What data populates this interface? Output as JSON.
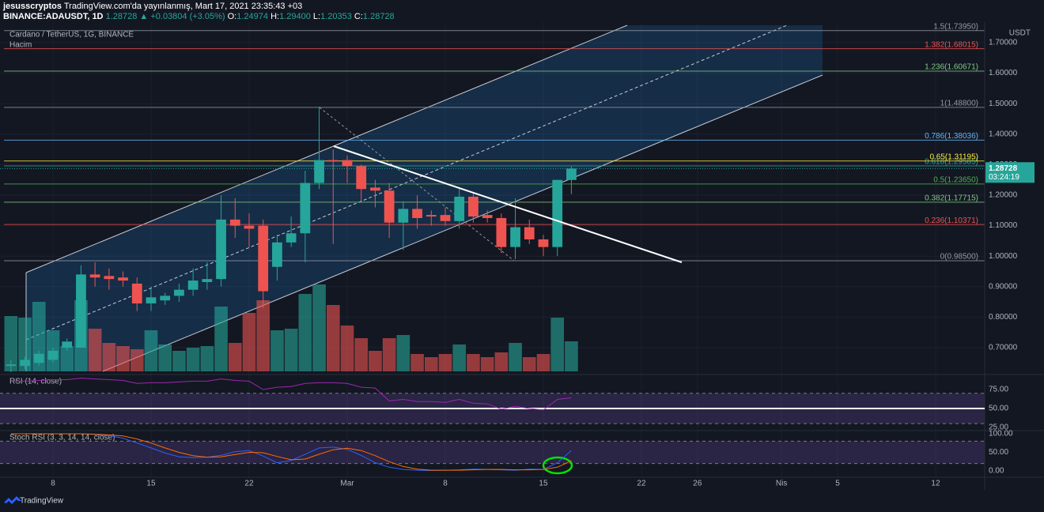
{
  "header": {
    "publisher": "jesusscryptos",
    "published": "TradingView.com'da yayınlanmış, Mart 17, 2021 23:35:43 +03",
    "symbol": "BINANCE:ADAUSDT, 1D",
    "last": "1.28728",
    "change": "▲ +0.03804 (+3.05%)",
    "ohlc": [
      {
        "label": "O:",
        "value": "1.24974"
      },
      {
        "label": "H:",
        "value": "1.29400"
      },
      {
        "label": "L:",
        "value": "1.20353"
      },
      {
        "label": "C:",
        "value": "1.28728"
      }
    ],
    "footer": "TradingView"
  },
  "chart_data": [
    {
      "type": "candlestick",
      "title": "Cardano / TetherUS, 1G, BINANCE",
      "x": [
        5,
        6,
        7,
        8,
        9,
        10,
        11,
        12,
        13,
        14,
        15,
        16,
        17,
        18,
        19,
        20,
        21,
        22,
        23,
        24,
        25,
        26,
        27,
        28,
        29,
        30,
        31,
        32,
        33,
        34,
        35,
        36,
        37,
        38,
        39,
        40,
        41,
        42,
        43,
        44,
        45
      ],
      "open": [
        0.64,
        0.64,
        0.65,
        0.66,
        0.7,
        0.7,
        0.94,
        0.935,
        0.93,
        0.91,
        0.845,
        0.855,
        0.87,
        0.89,
        0.915,
        0.925,
        1.12,
        1.1,
        1.1,
        0.965,
        1.045,
        1.075,
        1.24,
        1.315,
        1.315,
        1.295,
        1.225,
        1.215,
        1.11,
        1.155,
        1.135,
        1.135,
        1.115,
        1.195,
        1.135,
        1.125,
        1.03,
        1.095,
        1.055,
        1.03,
        1.24974
      ],
      "high": [
        0.66,
        0.67,
        0.69,
        0.7,
        0.73,
        0.97,
        0.98,
        0.96,
        0.95,
        0.93,
        0.9,
        0.88,
        0.91,
        0.96,
        0.98,
        1.2,
        1.19,
        1.14,
        1.12,
        1.07,
        1.13,
        1.28,
        1.49,
        1.35,
        1.33,
        1.3,
        1.25,
        1.24,
        1.18,
        1.2,
        1.15,
        1.16,
        1.22,
        1.21,
        1.15,
        1.14,
        1.19,
        1.12,
        1.07,
        1.25,
        1.294
      ],
      "low": [
        0.62,
        0.63,
        0.64,
        0.65,
        0.69,
        0.7,
        0.9,
        0.89,
        0.9,
        0.82,
        0.82,
        0.84,
        0.85,
        0.87,
        0.89,
        0.9,
        1.06,
        1.03,
        0.83,
        0.92,
        1.03,
        0.98,
        1.22,
        1.04,
        1.24,
        1.18,
        1.16,
        1.06,
        1.02,
        1.09,
        1.1,
        1.1,
        1.09,
        1.11,
        1.11,
        1.01,
        0.99,
        1.04,
        1.0,
        1.0,
        1.20353
      ],
      "close": [
        0.645,
        0.66,
        0.68,
        0.69,
        0.72,
        0.94,
        0.93,
        0.925,
        0.92,
        0.845,
        0.865,
        0.87,
        0.89,
        0.92,
        0.925,
        1.12,
        1.1,
        1.09,
        0.885,
        1.045,
        1.075,
        1.24,
        1.315,
        1.31,
        1.295,
        1.22,
        1.215,
        1.11,
        1.155,
        1.125,
        1.13,
        1.115,
        1.195,
        1.13,
        1.125,
        1.03,
        1.095,
        1.055,
        1.03,
        1.25,
        1.28728
      ],
      "up_color": "#26a69a",
      "down_color": "#ef5350",
      "xlim": [
        4.218,
        74.5
      ],
      "xticks": [
        8,
        15,
        22,
        {
          "value": 29,
          "label": "Mar"
        },
        {
          "value": 36,
          "label": "8"
        },
        {
          "value": 43,
          "label": "15"
        },
        {
          "value": 50,
          "label": "22"
        },
        {
          "value": 54,
          "label": "26"
        },
        {
          "value": 60,
          "label": "Nis"
        },
        {
          "value": 64,
          "label": "5"
        },
        {
          "value": 71,
          "label": "12"
        }
      ],
      "ylim": [
        0.6223,
        1.757
      ],
      "yticks": [
        {
          "value": 0.7,
          "label": "0.70000"
        },
        {
          "value": 0.8,
          "label": "0.80000"
        },
        {
          "value": 0.9,
          "label": "0.90000"
        },
        {
          "value": 1.0,
          "label": "1.00000"
        },
        {
          "value": 1.1,
          "label": "1.10000"
        },
        {
          "value": 1.2,
          "label": "1.20000"
        },
        {
          "value": 1.3,
          "label": "1.30000"
        },
        {
          "value": 1.4,
          "label": "1.40000"
        },
        {
          "value": 1.5,
          "label": "1.50000"
        },
        {
          "value": 1.6,
          "label": "1.60000"
        },
        {
          "value": 1.7,
          "label": "1.70000"
        }
      ],
      "grid": true,
      "y_unit": "USDT",
      "last_price": {
        "value": 1.28728,
        "label": "1.28728"
      },
      "countdown": "03:24:19",
      "levels": [
        {
          "value": 0.985,
          "label": "0(0.98500)",
          "color": "#9598a1"
        },
        {
          "value": 1.10371,
          "label": "0.236(1.10371)",
          "color": "#ef5350"
        },
        {
          "value": 1.17715,
          "label": "0.382(1.17715)",
          "color": "#81c784"
        },
        {
          "value": 1.2365,
          "label": "0.5(1.23650)",
          "color": "#4caf50"
        },
        {
          "value": 1.29585,
          "label": "0.618(1.29585)",
          "color": "#26a69a"
        },
        {
          "value": 1.31195,
          "label": "0.65(1.31195)",
          "color": "#ffeb3b"
        },
        {
          "value": 1.38036,
          "label": "0.786(1.38036)",
          "color": "#64b5f6"
        },
        {
          "value": 1.488,
          "label": "1(1.48800)",
          "color": "#9598a1"
        },
        {
          "value": 1.60671,
          "label": "1.236(1.60671)",
          "color": "#81c784"
        },
        {
          "value": 1.68015,
          "label": "1.382(1.68015)",
          "color": "#ef5350"
        },
        {
          "value": 1.7395,
          "label": "1.5(1.73950)",
          "color": "#9598a1"
        }
      ]
    },
    {
      "type": "bar",
      "title": "Hacim",
      "x": [
        5,
        6,
        7,
        8,
        9,
        10,
        11,
        12,
        13,
        14,
        15,
        16,
        17,
        18,
        19,
        20,
        21,
        22,
        23,
        24,
        25,
        26,
        27,
        28,
        29,
        30,
        31,
        32,
        33,
        34,
        35,
        36,
        37,
        38,
        39,
        40,
        41,
        42,
        43,
        44,
        45
      ],
      "values": [
        70,
        68,
        88,
        52,
        32,
        90,
        54,
        36,
        32,
        28,
        52,
        34,
        26,
        30,
        32,
        82,
        36,
        74,
        90,
        52,
        54,
        98,
        110,
        84,
        58,
        42,
        26,
        42,
        46,
        22,
        18,
        22,
        34,
        22,
        18,
        24,
        36,
        18,
        22,
        68,
        38
      ],
      "up_color": "#26a69a",
      "down_color": "#ef5350",
      "ylim": [
        0,
        438
      ]
    },
    {
      "type": "line",
      "title": "RSI (14, close)",
      "x": [
        5,
        6,
        7,
        8,
        9,
        10,
        11,
        12,
        13,
        14,
        15,
        16,
        17,
        18,
        19,
        20,
        21,
        22,
        23,
        24,
        25,
        26,
        27,
        28,
        29,
        30,
        31,
        32,
        33,
        34,
        35,
        36,
        37,
        38,
        39,
        40,
        41,
        42,
        43,
        44,
        45
      ],
      "series": [
        {
          "color": "#9c27b0",
          "values": [
            86,
            86,
            87,
            88,
            88,
            90,
            89,
            88,
            87,
            83,
            84,
            84,
            85,
            86,
            86,
            89,
            87,
            86,
            75,
            78,
            79,
            83,
            84,
            84,
            83,
            78,
            77,
            60,
            62,
            59,
            59,
            58,
            62,
            57,
            56,
            49,
            53,
            50,
            48,
            62,
            64
          ]
        }
      ],
      "ylim": [
        22.9,
        92.7
      ],
      "yticks": [
        {
          "value": 75,
          "label": "75.00"
        },
        {
          "value": 50,
          "label": "50.00"
        },
        {
          "value": 25,
          "label": "25.00"
        }
      ],
      "bands": [
        30,
        70
      ],
      "hline": 50
    },
    {
      "type": "line",
      "title": "Stoch RSI (3, 3, 14, 14, close)",
      "x": [
        5,
        6,
        7,
        8,
        9,
        10,
        11,
        12,
        13,
        14,
        15,
        16,
        17,
        18,
        19,
        20,
        21,
        22,
        23,
        24,
        25,
        26,
        27,
        28,
        29,
        30,
        31,
        32,
        33,
        34,
        35,
        36,
        37,
        38,
        39,
        40,
        41,
        42,
        43,
        44,
        45
      ],
      "series": [
        {
          "color": "#2962ff",
          "values": [
            100,
            100,
            100,
            100,
            100,
            100,
            98,
            95,
            88,
            75,
            62,
            48,
            38,
            36,
            37,
            42,
            52,
            55,
            40,
            22,
            28,
            45,
            62,
            64,
            58,
            42,
            22,
            10,
            4,
            2,
            1,
            2,
            3,
            5,
            4,
            3,
            2,
            5,
            4,
            22,
            55
          ]
        },
        {
          "color": "#ff6d00",
          "values": [
            100,
            100,
            100,
            100,
            100,
            100,
            99,
            97,
            94,
            86,
            75,
            62,
            50,
            41,
            37,
            38,
            44,
            50,
            49,
            39,
            30,
            32,
            45,
            57,
            61,
            55,
            41,
            25,
            12,
            5,
            2,
            2,
            2,
            3,
            4,
            4,
            3,
            3,
            4,
            10,
            27
          ]
        }
      ],
      "ylim": [
        -17,
        108.5
      ],
      "yticks": [
        {
          "value": 100,
          "label": "100.00"
        },
        {
          "value": 50,
          "label": "50.00"
        },
        {
          "value": 0,
          "label": "0.00"
        }
      ],
      "bands": [
        20,
        80
      ]
    }
  ]
}
